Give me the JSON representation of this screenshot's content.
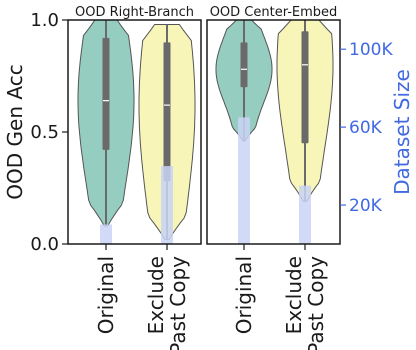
{
  "chart_data": {
    "type": "violin",
    "ylabel": "OOD Gen Acc",
    "y2label": "Dataset Size",
    "ylim": [
      0,
      1
    ],
    "y2lim": [
      0,
      115000
    ],
    "y_ticks": [
      "0.0",
      "0.5",
      "1.0"
    ],
    "y2_ticks": [
      "20K",
      "60K",
      "100K"
    ],
    "categories": [
      "Original",
      "Exclude\nPast Copy"
    ],
    "colors": {
      "original": "#8fcbbd",
      "exclude": "#f7f4b4",
      "dataset_bar": "#c9d4f5",
      "box": "#6a6a6a",
      "right_axis": "#4169e1"
    },
    "panels": [
      {
        "title": "OOD Right-Branch",
        "groups": [
          {
            "category": "Original",
            "min": 0.08,
            "q1": 0.42,
            "median": 0.64,
            "q3": 0.92,
            "max": 1.0,
            "dataset_size": 10000
          },
          {
            "category": "Exclude\nPast Copy",
            "min": 0.02,
            "q1": 0.28,
            "median": 0.62,
            "q3": 0.9,
            "max": 0.98,
            "dataset_size": 40000
          }
        ]
      },
      {
        "title": "OOD Center-Embed",
        "groups": [
          {
            "category": "Original",
            "min": 0.46,
            "q1": 0.7,
            "median": 0.78,
            "q3": 0.9,
            "max": 1.0,
            "dataset_size": 65000
          },
          {
            "category": "Exclude\nPast Copy",
            "min": 0.19,
            "q1": 0.45,
            "median": 0.8,
            "q3": 0.95,
            "max": 1.0,
            "dataset_size": 30000
          }
        ]
      }
    ]
  }
}
